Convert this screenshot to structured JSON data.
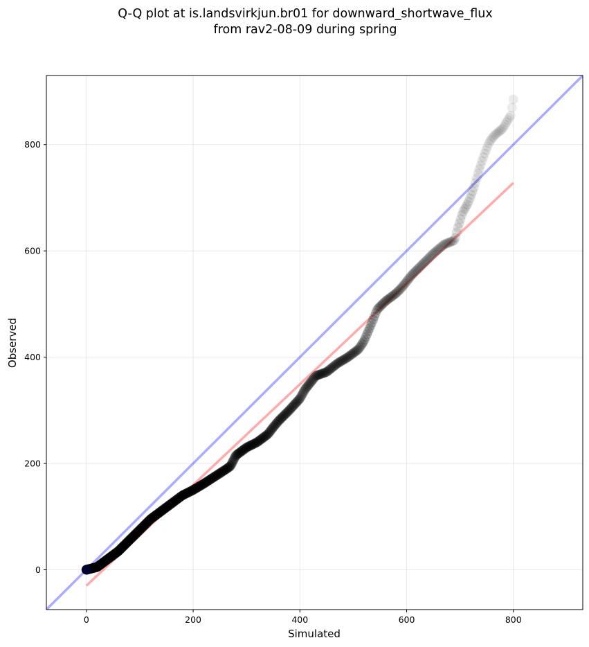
{
  "chart_data": {
    "type": "scatter",
    "title": [
      "Q-Q plot at is.landsvirkjun.br01 for downward_shortwave_flux",
      "from rav2-08-09 during spring"
    ],
    "xlabel": "Simulated",
    "ylabel": "Observed",
    "xlim": [
      -75,
      930
    ],
    "ylim": [
      -75,
      930
    ],
    "xticks": [
      0,
      200,
      400,
      600,
      800
    ],
    "yticks": [
      0,
      200,
      400,
      600,
      800
    ],
    "grid": true,
    "colors": {
      "points": "#000000",
      "identity_line": "#0000ff",
      "fit_line": "#ff0000",
      "grid": "#b0b0b0"
    },
    "identity_line": {
      "from": [
        -75,
        -75
      ],
      "to": [
        930,
        930
      ]
    },
    "fit_line": {
      "from": [
        0,
        -30
      ],
      "to": [
        800,
        728
      ]
    },
    "quantile_curve": [
      [
        0,
        0
      ],
      [
        20,
        5
      ],
      [
        40,
        20
      ],
      [
        60,
        35
      ],
      [
        80,
        55
      ],
      [
        100,
        75
      ],
      [
        120,
        95
      ],
      [
        140,
        110
      ],
      [
        160,
        125
      ],
      [
        180,
        140
      ],
      [
        200,
        150
      ],
      [
        220,
        162
      ],
      [
        240,
        175
      ],
      [
        260,
        188
      ],
      [
        270,
        195
      ],
      [
        280,
        215
      ],
      [
        300,
        230
      ],
      [
        320,
        240
      ],
      [
        340,
        255
      ],
      [
        350,
        268
      ],
      [
        360,
        280
      ],
      [
        380,
        300
      ],
      [
        400,
        322
      ],
      [
        410,
        340
      ],
      [
        430,
        365
      ],
      [
        450,
        372
      ],
      [
        470,
        388
      ],
      [
        490,
        400
      ],
      [
        510,
        415
      ],
      [
        520,
        430
      ],
      [
        535,
        465
      ],
      [
        545,
        490
      ],
      [
        560,
        505
      ],
      [
        580,
        520
      ],
      [
        590,
        530
      ],
      [
        610,
        555
      ],
      [
        630,
        575
      ],
      [
        650,
        595
      ],
      [
        670,
        612
      ],
      [
        690,
        620
      ],
      [
        695,
        640
      ],
      [
        705,
        672
      ],
      [
        715,
        690
      ],
      [
        725,
        715
      ],
      [
        735,
        750
      ],
      [
        745,
        780
      ],
      [
        755,
        805
      ],
      [
        765,
        818
      ],
      [
        780,
        830
      ],
      [
        795,
        855
      ],
      [
        800,
        885
      ]
    ]
  }
}
